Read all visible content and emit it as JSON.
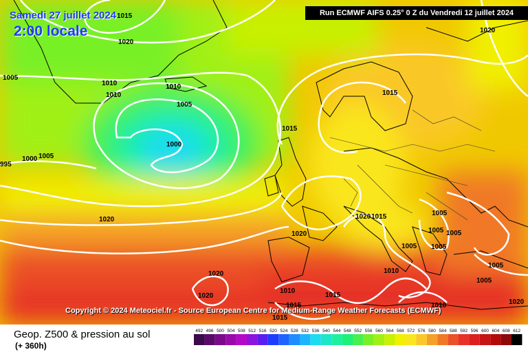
{
  "header": {
    "date": "Samedi 27 juillet 2024",
    "local_time": "2:00 locale",
    "run_info": "Run ECMWF AIFS 0.25° 0 Z du Vendredi 12 juillet 2024"
  },
  "copyright": "Copyright © 2024 Meteociel.fr - Source European Centre for Medium-Range Weather Forecasts (ECMWF)",
  "footer": {
    "title": "Geop. Z500 & pression au sol",
    "subtitle": "(+ 360h)"
  },
  "legend": {
    "values": [
      "492",
      "496",
      "500",
      "504",
      "508",
      "512",
      "516",
      "520",
      "524",
      "528",
      "532",
      "536",
      "540",
      "544",
      "548",
      "552",
      "556",
      "560",
      "564",
      "568",
      "572",
      "576",
      "580",
      "584",
      "588",
      "592",
      "596",
      "600",
      "604",
      "608",
      "612"
    ],
    "colors": [
      "#3a0a4a",
      "#5a0a6a",
      "#7a0a8a",
      "#9a0aaa",
      "#b40ac8",
      "#8c14dc",
      "#5a1ef0",
      "#1e3cff",
      "#1e64ff",
      "#1e8cff",
      "#1eb4ff",
      "#1edcf0",
      "#1ee6c8",
      "#1ef0a0",
      "#1ef078",
      "#46f050",
      "#78f028",
      "#a0f014",
      "#c8f000",
      "#f0f000",
      "#fae61e",
      "#fac828",
      "#f5a028",
      "#f07828",
      "#eb5028",
      "#e63228",
      "#dc1e1e",
      "#c81414",
      "#b40a0a",
      "#8c0a0a",
      "#000000"
    ]
  },
  "isobars": [
    {
      "label": "1015"
    },
    {
      "label": "1020"
    },
    {
      "label": "1005"
    },
    {
      "label": "1010"
    },
    {
      "label": "1010"
    },
    {
      "label": "1010"
    },
    {
      "label": "1005"
    },
    {
      "label": "1000"
    },
    {
      "label": "995"
    },
    {
      "label": "1000"
    },
    {
      "label": "1005"
    },
    {
      "label": "1015"
    },
    {
      "label": "1020"
    },
    {
      "label": "1015"
    },
    {
      "label": "1020"
    },
    {
      "label": "1020"
    },
    {
      "label": "1015"
    },
    {
      "label": "1005"
    },
    {
      "label": "1005"
    },
    {
      "label": "1005"
    },
    {
      "label": "1005"
    },
    {
      "label": "1005"
    },
    {
      "label": "1020"
    },
    {
      "label": "1010"
    },
    {
      "label": "1005"
    },
    {
      "label": "1005"
    },
    {
      "label": "1020"
    },
    {
      "label": "1020"
    },
    {
      "label": "1010"
    },
    {
      "label": "1015"
    },
    {
      "label": "1015"
    },
    {
      "label": "1010"
    },
    {
      "label": "1015"
    },
    {
      "label": "1020"
    }
  ]
}
